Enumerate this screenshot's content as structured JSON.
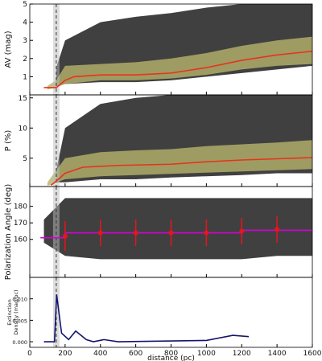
{
  "chart_data": [
    {
      "type": "line",
      "ylabel": "AV (mag)",
      "ylim": [
        0,
        5
      ],
      "yticks": [
        1,
        2,
        3,
        4,
        5
      ],
      "vline": 150,
      "bands": [
        {
          "color": "#000000",
          "x": [
            150,
            200,
            400,
            600,
            800,
            1000,
            1200,
            1400,
            1600
          ],
          "lower": [
            0.5,
            0.6,
            0.7,
            0.7,
            0.8,
            1,
            1.2,
            1.4,
            1.6
          ],
          "upper": [
            1.5,
            3,
            4,
            4.3,
            4.5,
            4.8,
            5,
            5,
            5
          ]
        },
        {
          "color": "#b5b36a",
          "x": [
            100,
            150,
            200,
            400,
            600,
            800,
            1000,
            1200,
            1400,
            1600
          ],
          "lower": [
            0.3,
            0.4,
            0.6,
            0.8,
            0.8,
            0.9,
            1.1,
            1.4,
            1.6,
            1.7
          ],
          "upper": [
            0.5,
            0.8,
            1.6,
            1.7,
            1.8,
            2,
            2.3,
            2.7,
            3,
            3.2
          ]
        }
      ],
      "series": [
        {
          "color": "#e8321e",
          "x": [
            80,
            150,
            200,
            250,
            400,
            600,
            800,
            1000,
            1200,
            1400,
            1600
          ],
          "values": [
            0.4,
            0.4,
            0.8,
            1,
            1.1,
            1.1,
            1.2,
            1.5,
            1.9,
            2.2,
            2.4
          ]
        }
      ]
    },
    {
      "type": "line",
      "ylabel": "P (%)",
      "ylim": [
        0.3,
        15.5
      ],
      "yticks": [
        5,
        10,
        15
      ],
      "vline": 150,
      "bands": [
        {
          "color": "#000000",
          "x": [
            150,
            200,
            400,
            600,
            800,
            1000,
            1200,
            1400,
            1600
          ],
          "lower": [
            1,
            1,
            1.5,
            1.5,
            1.8,
            2,
            2.2,
            2.5,
            2.5
          ],
          "upper": [
            3,
            10,
            14,
            15,
            15.5,
            15.5,
            15.5,
            15.5,
            15.5
          ]
        },
        {
          "color": "#b5b36a",
          "x": [
            100,
            150,
            200,
            400,
            600,
            800,
            1000,
            1200,
            1400,
            1600
          ],
          "lower": [
            0.4,
            1,
            1.5,
            2,
            2.2,
            2.4,
            2.6,
            2.8,
            3,
            3.2
          ],
          "upper": [
            1,
            3,
            5,
            6,
            6.3,
            6.5,
            7,
            7.3,
            7.6,
            8
          ]
        }
      ],
      "series": [
        {
          "color": "#e8321e",
          "x": [
            120,
            150,
            200,
            300,
            500,
            800,
            1000,
            1200,
            1400,
            1600
          ],
          "values": [
            0.5,
            1.2,
            2.5,
            3.5,
            3.8,
            4,
            4.4,
            4.7,
            4.9,
            5.1
          ]
        }
      ]
    },
    {
      "type": "line",
      "ylabel": "Polarization Angle (deg)",
      "ylim": [
        137,
        192
      ],
      "yticks": [
        160,
        170,
        180
      ],
      "vline": 150,
      "bands": [
        {
          "color": "#000000",
          "x": [
            80,
            200,
            400,
            600,
            800,
            1000,
            1200,
            1400,
            1600
          ],
          "lower": [
            158,
            150,
            148,
            148,
            148,
            148,
            148,
            150,
            150
          ],
          "upper": [
            172,
            185,
            185,
            185,
            185,
            185,
            185,
            185,
            185
          ]
        }
      ],
      "series": [
        {
          "color": "#d400d4",
          "x": [
            60,
            200,
            200,
            1200,
            1200,
            1600
          ],
          "values": [
            161,
            161,
            164,
            164,
            165.5,
            165.5
          ]
        },
        {
          "color": "#e8141e",
          "marker": "point",
          "x": [
            200,
            400,
            600,
            800,
            1000,
            1200,
            1400
          ],
          "values": [
            162,
            164,
            164,
            164,
            164,
            165,
            166
          ],
          "errors": [
            9,
            8,
            8,
            8,
            8,
            8,
            8
          ]
        }
      ]
    },
    {
      "type": "line",
      "ylabel": [
        "Extinction",
        "Density (mag/pc)"
      ],
      "xlabel": "distance (pc)",
      "xlim": [
        0,
        1600
      ],
      "ylim": [
        -0.0013,
        0.015
      ],
      "yticks": [
        {
          "value": 0,
          "label": "0.000"
        },
        {
          "value": 0.005,
          "label": "0.005"
        },
        {
          "value": 0.01,
          "label": "0.010"
        }
      ],
      "xticks": [
        0,
        200,
        400,
        600,
        800,
        1000,
        1200,
        1400,
        1600
      ],
      "vline": 150,
      "series": [
        {
          "color": "#14146e",
          "x": [
            80,
            140,
            152,
            180,
            220,
            260,
            320,
            360,
            420,
            500,
            1000,
            1150,
            1240
          ],
          "values": [
            0,
            0,
            0.011,
            0.002,
            0.0005,
            0.0025,
            0.0005,
            0,
            0.0005,
            0,
            0.0003,
            0.0015,
            0.0012
          ]
        }
      ]
    }
  ]
}
